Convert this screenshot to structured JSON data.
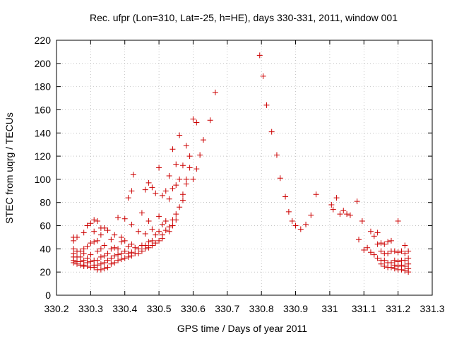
{
  "chart_data": {
    "type": "scatter",
    "title": "Rec. ufpr (Lon=310, Lat=-25, h=HE), days 330-331, 2011, window 001",
    "xlabel": "GPS time / Days of year 2011",
    "ylabel": "STEC from uqrg / TECUs",
    "xlim": [
      330.2,
      331.3
    ],
    "ylim": [
      0,
      220
    ],
    "xticks": [
      "330.2",
      "330.3",
      "330.4",
      "330.5",
      "330.6",
      "330.7",
      "330.8",
      "330.9",
      "331",
      "331.1",
      "331.2",
      "331.3"
    ],
    "yticks": [
      "0",
      "20",
      "40",
      "60",
      "80",
      "100",
      "120",
      "140",
      "160",
      "180",
      "200",
      "220"
    ],
    "grid": true,
    "marker_color": "#cc0000",
    "series": [
      {
        "points": [
          [
            330.25,
            50
          ],
          [
            330.25,
            47
          ],
          [
            330.25,
            40
          ],
          [
            330.25,
            36
          ],
          [
            330.25,
            33
          ],
          [
            330.25,
            30
          ],
          [
            330.25,
            28
          ],
          [
            330.26,
            50
          ],
          [
            330.26,
            38
          ],
          [
            330.26,
            33
          ],
          [
            330.26,
            29
          ],
          [
            330.26,
            27
          ],
          [
            330.27,
            38
          ],
          [
            330.27,
            33
          ],
          [
            330.27,
            29
          ],
          [
            330.27,
            26
          ],
          [
            330.28,
            54
          ],
          [
            330.28,
            40
          ],
          [
            330.28,
            36
          ],
          [
            330.28,
            30
          ],
          [
            330.28,
            26
          ],
          [
            330.28,
            25
          ],
          [
            330.29,
            60
          ],
          [
            330.29,
            42
          ],
          [
            330.29,
            32
          ],
          [
            330.29,
            28
          ],
          [
            330.29,
            25
          ],
          [
            330.3,
            62
          ],
          [
            330.3,
            45
          ],
          [
            330.3,
            35
          ],
          [
            330.3,
            29
          ],
          [
            330.3,
            24
          ],
          [
            330.31,
            65
          ],
          [
            330.31,
            55
          ],
          [
            330.31,
            46
          ],
          [
            330.31,
            30
          ],
          [
            330.31,
            26
          ],
          [
            330.31,
            24
          ],
          [
            330.32,
            64
          ],
          [
            330.32,
            47
          ],
          [
            330.32,
            38
          ],
          [
            330.32,
            30
          ],
          [
            330.32,
            26
          ],
          [
            330.32,
            22
          ],
          [
            330.33,
            58
          ],
          [
            330.33,
            52
          ],
          [
            330.33,
            40
          ],
          [
            330.33,
            33
          ],
          [
            330.33,
            27
          ],
          [
            330.33,
            22
          ],
          [
            330.34,
            58
          ],
          [
            330.34,
            43
          ],
          [
            330.34,
            34
          ],
          [
            330.34,
            28
          ],
          [
            330.34,
            23
          ],
          [
            330.35,
            56
          ],
          [
            330.35,
            36
          ],
          [
            330.35,
            30
          ],
          [
            330.35,
            24
          ],
          [
            330.36,
            48
          ],
          [
            330.36,
            40
          ],
          [
            330.36,
            32
          ],
          [
            330.36,
            27
          ],
          [
            330.37,
            52
          ],
          [
            330.37,
            41
          ],
          [
            330.37,
            34
          ],
          [
            330.37,
            28
          ],
          [
            330.38,
            67
          ],
          [
            330.38,
            40
          ],
          [
            330.38,
            35
          ],
          [
            330.38,
            30
          ],
          [
            330.39,
            50
          ],
          [
            330.39,
            46
          ],
          [
            330.39,
            36
          ],
          [
            330.39,
            31
          ],
          [
            330.4,
            66
          ],
          [
            330.4,
            47
          ],
          [
            330.4,
            38
          ],
          [
            330.4,
            32
          ],
          [
            330.41,
            84
          ],
          [
            330.41,
            42
          ],
          [
            330.41,
            36
          ],
          [
            330.41,
            33
          ],
          [
            330.42,
            90
          ],
          [
            330.42,
            61
          ],
          [
            330.42,
            44
          ],
          [
            330.42,
            37
          ],
          [
            330.42,
            34
          ],
          [
            330.425,
            104
          ],
          [
            330.43,
            41
          ],
          [
            330.43,
            36
          ],
          [
            330.44,
            55
          ],
          [
            330.44,
            40
          ],
          [
            330.44,
            36
          ],
          [
            330.45,
            71
          ],
          [
            330.45,
            43
          ],
          [
            330.45,
            38
          ],
          [
            330.46,
            91
          ],
          [
            330.46,
            53
          ],
          [
            330.46,
            43
          ],
          [
            330.46,
            40
          ],
          [
            330.47,
            97
          ],
          [
            330.47,
            64
          ],
          [
            330.47,
            46
          ],
          [
            330.47,
            41
          ],
          [
            330.48,
            93
          ],
          [
            330.48,
            57
          ],
          [
            330.48,
            47
          ],
          [
            330.48,
            43
          ],
          [
            330.49,
            88
          ],
          [
            330.49,
            52
          ],
          [
            330.49,
            45
          ],
          [
            330.5,
            110
          ],
          [
            330.5,
            68
          ],
          [
            330.5,
            55
          ],
          [
            330.5,
            47
          ],
          [
            330.51,
            86
          ],
          [
            330.51,
            61
          ],
          [
            330.51,
            52
          ],
          [
            330.51,
            49
          ],
          [
            330.52,
            90
          ],
          [
            330.52,
            64
          ],
          [
            330.52,
            56
          ],
          [
            330.53,
            103
          ],
          [
            330.53,
            83
          ],
          [
            330.53,
            59
          ],
          [
            330.53,
            55
          ],
          [
            330.54,
            126
          ],
          [
            330.54,
            92
          ],
          [
            330.54,
            65
          ],
          [
            330.54,
            60
          ],
          [
            330.55,
            113
          ],
          [
            330.55,
            95
          ],
          [
            330.55,
            70
          ],
          [
            330.55,
            65
          ],
          [
            330.56,
            138
          ],
          [
            330.56,
            100
          ],
          [
            330.56,
            76
          ],
          [
            330.57,
            112
          ],
          [
            330.57,
            87
          ],
          [
            330.57,
            82
          ],
          [
            330.58,
            129
          ],
          [
            330.58,
            100
          ],
          [
            330.58,
            96
          ],
          [
            330.59,
            120
          ],
          [
            330.59,
            110
          ],
          [
            330.6,
            152
          ],
          [
            330.6,
            100
          ],
          [
            330.61,
            149
          ],
          [
            330.61,
            109
          ],
          [
            330.62,
            121
          ],
          [
            330.63,
            134
          ],
          [
            330.65,
            151
          ],
          [
            330.665,
            175
          ],
          [
            330.795,
            207
          ],
          [
            330.805,
            189
          ],
          [
            330.815,
            164
          ],
          [
            330.83,
            141
          ],
          [
            330.845,
            121
          ],
          [
            330.855,
            101
          ],
          [
            330.87,
            85
          ],
          [
            330.88,
            72
          ],
          [
            330.89,
            64
          ],
          [
            330.9,
            60
          ],
          [
            330.915,
            57
          ],
          [
            330.93,
            61
          ],
          [
            330.945,
            69
          ],
          [
            330.96,
            87
          ],
          [
            331.005,
            78
          ],
          [
            331.01,
            74
          ],
          [
            331.02,
            84
          ],
          [
            331.03,
            70
          ],
          [
            331.04,
            73
          ],
          [
            331.05,
            70
          ],
          [
            331.06,
            69
          ],
          [
            331.08,
            81
          ],
          [
            331.085,
            48
          ],
          [
            331.095,
            64
          ],
          [
            331.1,
            39
          ],
          [
            331.11,
            41
          ],
          [
            331.12,
            55
          ],
          [
            331.12,
            37
          ],
          [
            331.13,
            51
          ],
          [
            331.13,
            35
          ],
          [
            331.14,
            54
          ],
          [
            331.14,
            44
          ],
          [
            331.14,
            32
          ],
          [
            331.15,
            45
          ],
          [
            331.15,
            38
          ],
          [
            331.15,
            30
          ],
          [
            331.15,
            27
          ],
          [
            331.16,
            44
          ],
          [
            331.16,
            36
          ],
          [
            331.16,
            30
          ],
          [
            331.16,
            25
          ],
          [
            331.17,
            46
          ],
          [
            331.17,
            36
          ],
          [
            331.17,
            28
          ],
          [
            331.17,
            24
          ],
          [
            331.18,
            47
          ],
          [
            331.18,
            38
          ],
          [
            331.18,
            28
          ],
          [
            331.18,
            24
          ],
          [
            331.19,
            38
          ],
          [
            331.19,
            30
          ],
          [
            331.19,
            26
          ],
          [
            331.19,
            23
          ],
          [
            331.2,
            64
          ],
          [
            331.2,
            37
          ],
          [
            331.2,
            29
          ],
          [
            331.2,
            25
          ],
          [
            331.2,
            22
          ],
          [
            331.21,
            38
          ],
          [
            331.21,
            30
          ],
          [
            331.21,
            26
          ],
          [
            331.21,
            22
          ],
          [
            331.22,
            43
          ],
          [
            331.22,
            36
          ],
          [
            331.22,
            30
          ],
          [
            331.22,
            25
          ],
          [
            331.22,
            21
          ],
          [
            331.23,
            38
          ],
          [
            331.23,
            32
          ],
          [
            331.23,
            27
          ],
          [
            331.23,
            23
          ],
          [
            331.23,
            20
          ]
        ]
      }
    ]
  }
}
